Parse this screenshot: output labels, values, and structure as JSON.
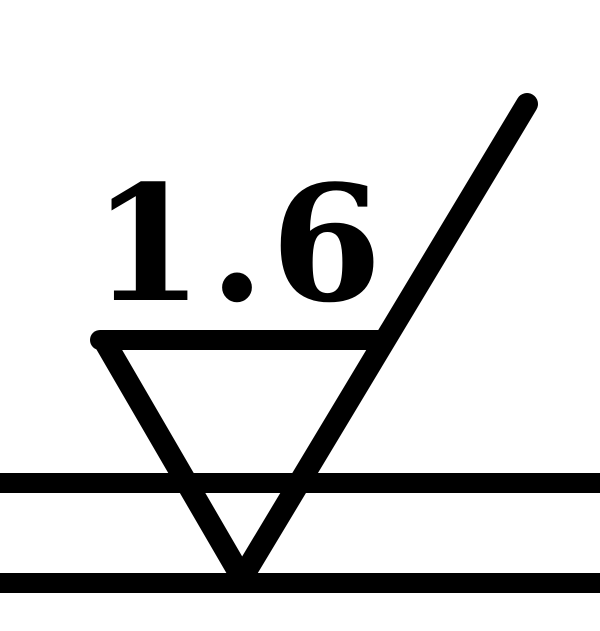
{
  "symbol": {
    "roughness_value": "1.6",
    "ink_color": "#000000",
    "background_color": "#ffffff"
  }
}
